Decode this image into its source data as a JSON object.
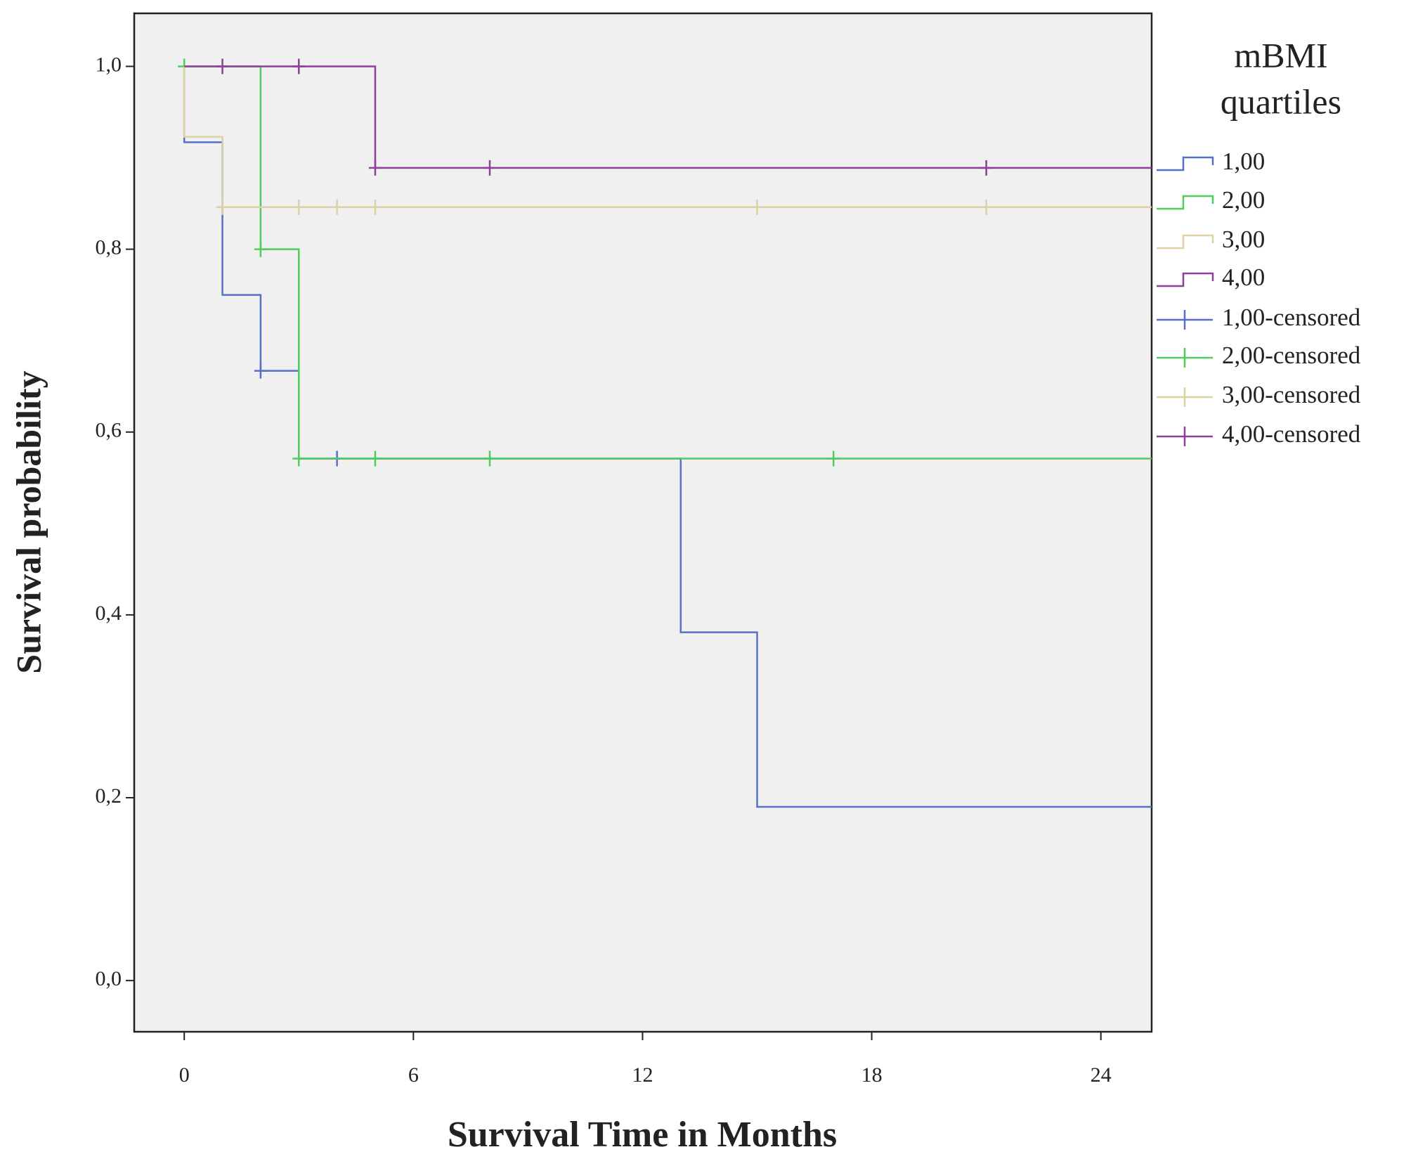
{
  "chart_data": {
    "type": "kaplan-meier",
    "x_label": "Survival Time in Months",
    "y_label": "Survival probability",
    "legend_title": [
      "mBMI",
      "quartiles"
    ],
    "legend_position": "right",
    "background": "#f0f0f0",
    "xlim": [
      -1.31,
      25.33
    ],
    "ylim": [
      -0.056,
      1.058
    ],
    "xticks": [
      0,
      6,
      12,
      18,
      24
    ],
    "yticks": [
      {
        "value": 0,
        "label": "0,0"
      },
      {
        "value": 0.2,
        "label": "0,2"
      },
      {
        "value": 0.4,
        "label": "0,4"
      },
      {
        "value": 0.6,
        "label": "0,6"
      },
      {
        "value": 0.8,
        "label": "0,8"
      },
      {
        "value": 1,
        "label": "1,0"
      }
    ],
    "series": [
      {
        "name": "1,00",
        "censored_name": "1,00-censored",
        "color": "#5470c8",
        "x": [
          0,
          0,
          1,
          2,
          3,
          13,
          15
        ],
        "values": [
          1,
          0.917,
          0.75,
          0.667,
          0.571,
          0.381,
          0.19
        ],
        "censored_x": [
          2,
          4
        ],
        "censored_values": [
          0.667,
          0.571
        ]
      },
      {
        "name": "2,00",
        "censored_name": "2,00-censored",
        "color": "#4fcc5c",
        "x": [
          0,
          2,
          3
        ],
        "values": [
          1,
          0.8,
          0.571
        ],
        "censored_x": [
          0,
          2,
          3,
          5,
          8,
          17
        ],
        "censored_values": [
          1,
          0.8,
          0.571,
          0.571,
          0.571,
          0.571
        ]
      },
      {
        "name": "3,00",
        "censored_name": "3,00-censored",
        "color": "#ddd2a4",
        "x": [
          0,
          0,
          1
        ],
        "values": [
          1,
          0.923,
          0.846
        ],
        "censored_x": [
          1,
          3,
          4,
          5,
          15,
          21
        ],
        "censored_values": [
          0.846,
          0.846,
          0.846,
          0.846,
          0.846,
          0.846
        ]
      },
      {
        "name": "4,00",
        "censored_name": "4,00-censored",
        "color": "#8d3f99",
        "x": [
          0,
          5
        ],
        "values": [
          1,
          0.889
        ],
        "censored_x": [
          1,
          3,
          5,
          8,
          21
        ],
        "censored_values": [
          1,
          1,
          0.889,
          0.889,
          0.889
        ]
      }
    ]
  }
}
